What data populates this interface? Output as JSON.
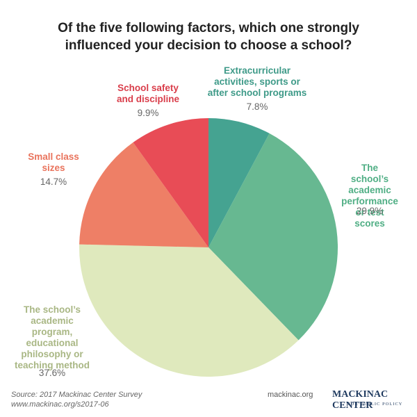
{
  "chart_data": {
    "type": "pie",
    "title": "Of the five following factors, which one strongly\ninfluenced your decision to choose a school?",
    "categories": [
      "Extracurricular\nactivities, sports or\nafter school programs",
      "The school’s\nacademic\nperformance\nor test scores",
      "The school’s\nacademic\nprogram,\neducational\nphilosophy or\nteaching method",
      "Small class\nsizes",
      "School safety\nand discipline"
    ],
    "values": [
      7.8,
      29.9,
      37.6,
      14.7,
      9.9
    ],
    "value_labels": [
      "7.8%",
      "29.9%",
      "37.6%",
      "14.7%",
      "9.9%"
    ],
    "colors": [
      "#45a391",
      "#67b891",
      "#dfe9bd",
      "#ee7f66",
      "#e84c56"
    ]
  },
  "footer": {
    "source": "Source: 2017 Mackinac Center Survey",
    "url": "www.mackinac.org/s2017-06",
    "site": "mackinac.org",
    "logo": "MACKINAC CENTER",
    "logo_sub": "FOR PUBLIC POLICY"
  }
}
